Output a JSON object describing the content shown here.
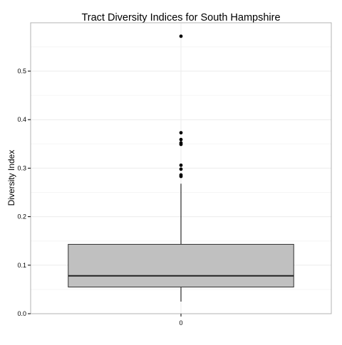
{
  "chart_data": {
    "type": "box",
    "title": "Tract Diversity Indices for South Hampshire",
    "xlabel": "",
    "ylabel": "Diversity Index",
    "categories": [
      "0"
    ],
    "ylim": [
      0.0,
      0.6
    ],
    "yticks": [
      0.0,
      0.1,
      0.2,
      0.3,
      0.4,
      0.5
    ],
    "ytick_labels": [
      "0.0",
      "0.1",
      "0.2",
      "0.3",
      "0.4",
      "0.5"
    ],
    "grid": true,
    "legend": "none",
    "boxes": [
      {
        "category": "0",
        "whisker_low": 0.025,
        "q1": 0.055,
        "median": 0.078,
        "q3": 0.143,
        "whisker_high": 0.268,
        "outliers": [
          0.283,
          0.286,
          0.298,
          0.306,
          0.349,
          0.352,
          0.359,
          0.373,
          0.572
        ]
      }
    ],
    "colors": {
      "box_fill": "#c0c0c0",
      "box_stroke": "#333333",
      "median": "#222222",
      "outlier": "#000000",
      "grid_major": "#ebebeb",
      "grid_minor": "#f5f5f5",
      "panel_border": "#b3b3b3"
    }
  }
}
